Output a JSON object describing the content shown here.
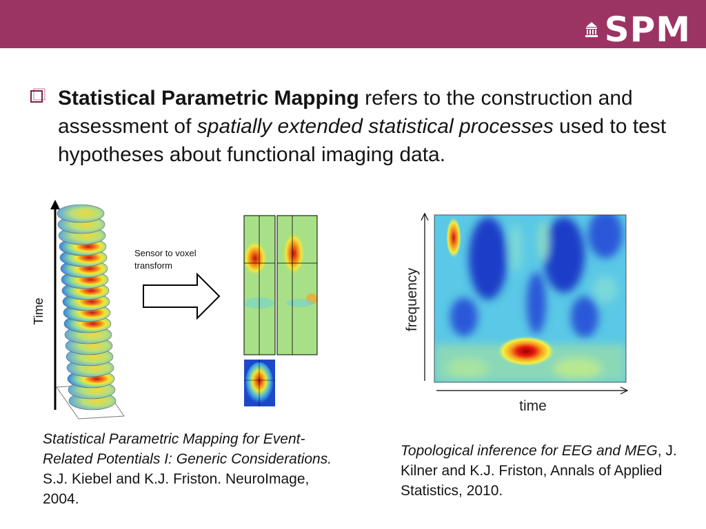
{
  "header": {
    "logo_text": "SPM",
    "accent_color": "#9b3463"
  },
  "bullet": {
    "bold_term": "Statistical Parametric Mapping",
    "text_part1": " refers to the construction and assessment of ",
    "italic_term": "spatially extended statistical processes",
    "text_part2": " used to test hypotheses about functional imaging data."
  },
  "figure_left": {
    "axis_label": "Time",
    "arrow_label_line1": "Sensor to voxel",
    "arrow_label_line2": "transform"
  },
  "figure_right": {
    "y_label": "frequency",
    "x_label": "time"
  },
  "caption_left": {
    "italic": "Statistical Parametric Mapping for Event-Related Potentials I: Generic Considerations.",
    "rest": " S.J. Kiebel and K.J. Friston. NeuroImage, 2004."
  },
  "caption_right": {
    "italic_1": "Topological inference for EEG and MEG",
    "rest": ", J. Kilner and K.J. Friston, Annals of Applied Statistics, 2010."
  }
}
